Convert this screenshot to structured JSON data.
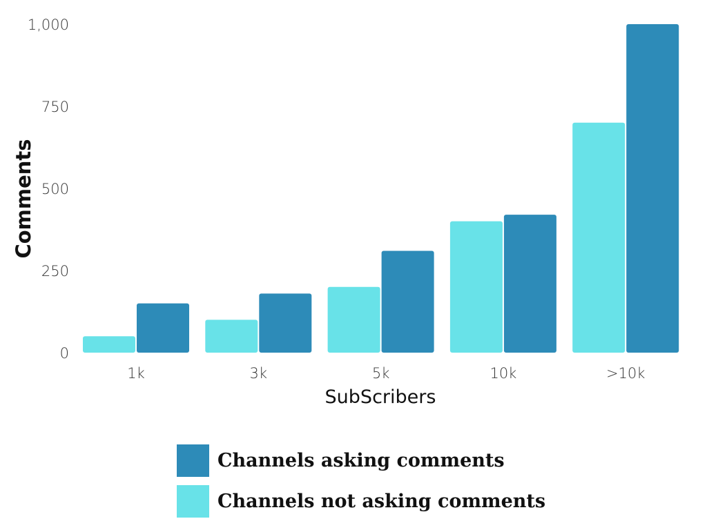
{
  "chart_data": {
    "type": "bar",
    "title": "",
    "xlabel": "SubScribers",
    "ylabel": "Comments",
    "categories": [
      "1k",
      "3k",
      "5k",
      "10k",
      ">10k"
    ],
    "series": [
      {
        "name": "Channels not asking comments",
        "color": "#68e2e8",
        "values": [
          50,
          100,
          200,
          400,
          700
        ]
      },
      {
        "name": "Channels asking comments",
        "color": "#2d8bb8",
        "values": [
          150,
          180,
          310,
          420,
          1000
        ]
      }
    ],
    "ylim": [
      0,
      1000
    ],
    "yticks": [
      "0",
      "250",
      "500",
      "750",
      "1,000"
    ],
    "ytick_values": [
      0,
      250,
      500,
      750,
      1000
    ],
    "grid": false,
    "legend_position": "bottom"
  },
  "legend": {
    "items": [
      {
        "label": "Channels asking comments",
        "color": "#2d8bb8"
      },
      {
        "label": "Channels not asking comments",
        "color": "#68e2e8"
      }
    ]
  }
}
